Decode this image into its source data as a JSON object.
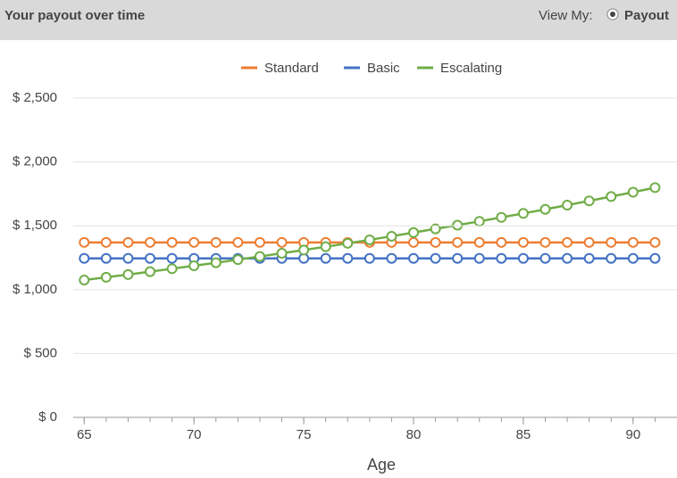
{
  "header": {
    "title": "Your payout over time",
    "view_label": "View My:",
    "view_option": "Payout"
  },
  "chart_data": {
    "type": "line",
    "xlabel": "Age",
    "x": [
      65,
      66,
      67,
      68,
      69,
      70,
      71,
      72,
      73,
      74,
      75,
      76,
      77,
      78,
      79,
      80,
      81,
      82,
      83,
      84,
      85,
      86,
      87,
      88,
      89,
      90,
      91
    ],
    "series": [
      {
        "name": "Standard",
        "color": "#ed7d31",
        "values": [
          1370,
          1370,
          1370,
          1370,
          1370,
          1370,
          1370,
          1370,
          1370,
          1370,
          1370,
          1370,
          1370,
          1370,
          1370,
          1370,
          1370,
          1370,
          1370,
          1370,
          1370,
          1370,
          1370,
          1370,
          1370,
          1370,
          1370
        ]
      },
      {
        "name": "Basic",
        "color": "#4472c4",
        "values": [
          1245,
          1245,
          1245,
          1245,
          1245,
          1245,
          1245,
          1245,
          1245,
          1245,
          1245,
          1245,
          1245,
          1245,
          1245,
          1245,
          1245,
          1245,
          1245,
          1245,
          1245,
          1245,
          1245,
          1245,
          1245,
          1245,
          1245
        ]
      },
      {
        "name": "Escalating",
        "color": "#70ad47",
        "values": [
          1075,
          1097,
          1118,
          1141,
          1164,
          1187,
          1211,
          1235,
          1260,
          1285,
          1310,
          1336,
          1363,
          1390,
          1418,
          1447,
          1476,
          1505,
          1535,
          1566,
          1597,
          1629,
          1662,
          1695,
          1729,
          1763,
          1799
        ]
      }
    ],
    "xlim": [
      64.5,
      92
    ],
    "xticks": [
      65,
      70,
      75,
      80,
      85,
      90
    ],
    "ylim": [
      0,
      2500
    ],
    "yticks": [
      {
        "value": 0,
        "label": "$ 0"
      },
      {
        "value": 500,
        "label": "$ 500"
      },
      {
        "value": 1000,
        "label": "$ 1,000"
      },
      {
        "value": 1500,
        "label": "$ 1,500"
      },
      {
        "value": 2000,
        "label": "$ 2,000"
      },
      {
        "value": 2500,
        "label": "$ 2,500"
      }
    ],
    "grid": true,
    "legend": "top"
  }
}
